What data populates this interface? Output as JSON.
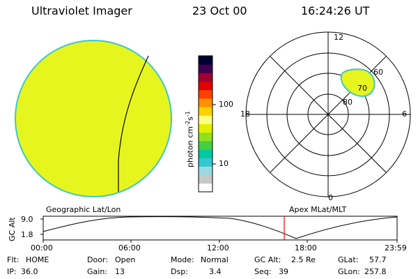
{
  "header": {
    "instrument": "Ultraviolet Imager",
    "date": "23 Oct 00",
    "time": "16:24:26 UT"
  },
  "colorbar": {
    "unit_label": "photon cm",
    "unit_exp1": "-2",
    "unit_s": "s",
    "unit_exp2": "-1",
    "ticks": [
      {
        "label": "100",
        "value": 100
      },
      {
        "label": "10",
        "value": 10
      }
    ],
    "colors": [
      "#ffffff",
      "#c8c8c8",
      "#9bd8e0",
      "#32c8d0",
      "#00c8a0",
      "#40d040",
      "#90e020",
      "#e0f000",
      "#ffff80",
      "#ffd000",
      "#ff9000",
      "#ff4000",
      "#e00000",
      "#a00030",
      "#400050",
      "#000030"
    ]
  },
  "polar_plot": {
    "mlt_labels": {
      "top": "12",
      "right": "6",
      "bottom": "0",
      "left": "18"
    },
    "lat_labels": [
      "60",
      "70",
      "80"
    ]
  },
  "titles": {
    "geographic": "Geographic Lat/Lon",
    "apex": "Apex MLat/MLT"
  },
  "altitude_plot": {
    "ylabel": "GC Alt",
    "ymax_label": "9.0",
    "ymin_label": "1.8",
    "time_ticks": [
      "00:00",
      "06:00",
      "12:00",
      "18:00",
      "23:59"
    ]
  },
  "status": {
    "row1": [
      {
        "label": "Flt:",
        "value": "HOME"
      },
      {
        "label": "Door:",
        "value": "Open"
      },
      {
        "label": "Mode:",
        "value": "Normal"
      },
      {
        "label": "GC Alt:",
        "value": "2.5 Re"
      },
      {
        "label": "GLat:",
        "value": "57.7"
      }
    ],
    "row2": [
      {
        "label": "IP:",
        "value": "36.0"
      },
      {
        "label": "Gain:",
        "value": "13"
      },
      {
        "label": "Dsp:",
        "value": "3.4"
      },
      {
        "label": "Seq:",
        "value": "39"
      },
      {
        "label": "GLon:",
        "value": "257.8"
      }
    ]
  },
  "colors": {
    "disk_fill": "#e6f51e",
    "disk_edge": "#3cc8c8",
    "oval_fill": "#e6f51e",
    "current_time_marker": "#ff0000"
  }
}
